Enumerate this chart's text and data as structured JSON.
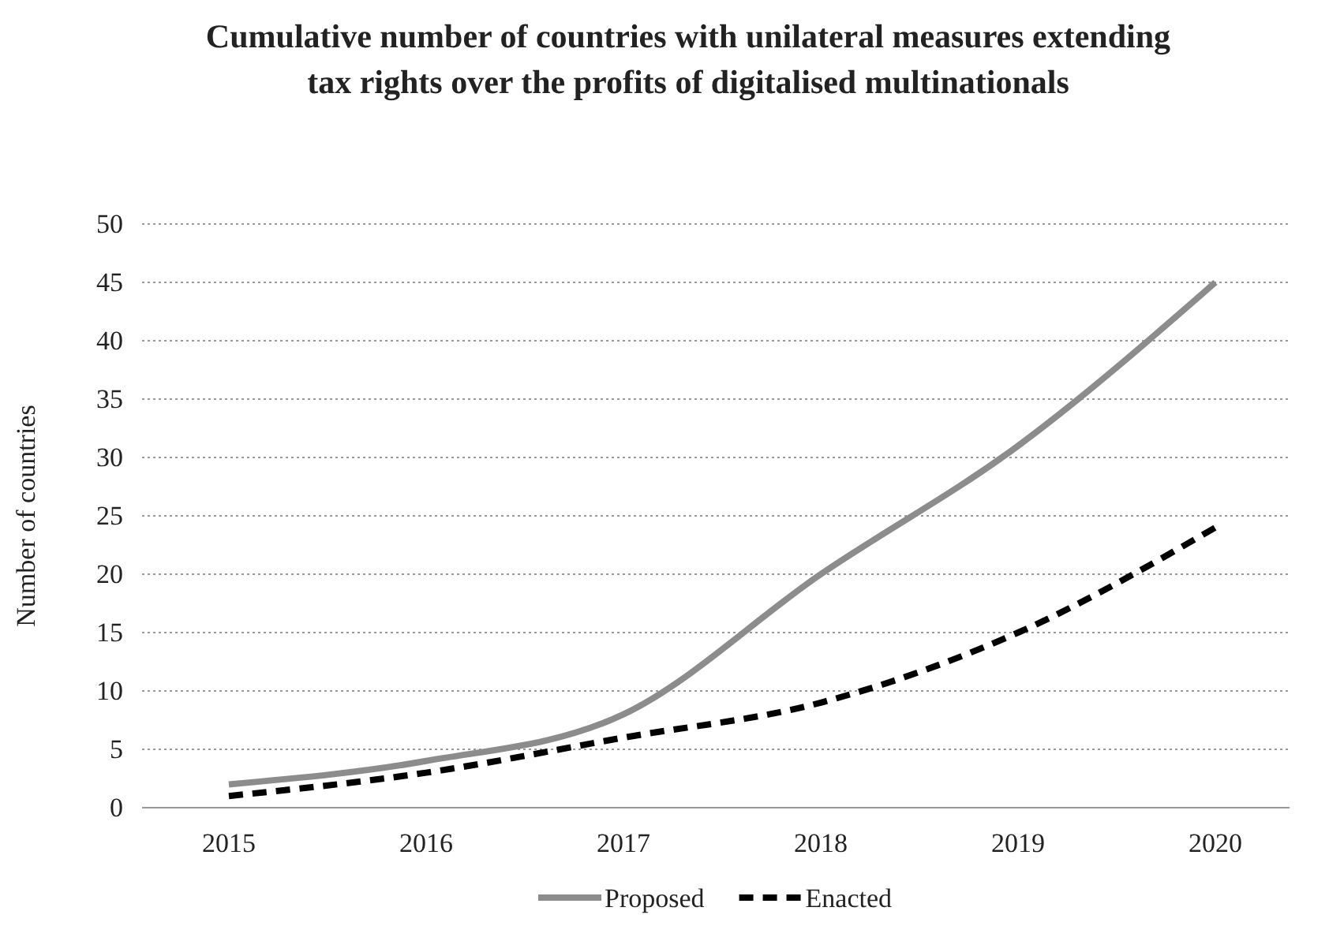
{
  "chart_data": {
    "type": "line",
    "title": "Cumulative number of countries with unilateral measures extending tax rights over the profits of digitalised multinationals",
    "ylabel": "Number of countries",
    "categories": [
      "2015",
      "2016",
      "2017",
      "2018",
      "2019",
      "2020"
    ],
    "series": [
      {
        "name": "Proposed",
        "color": "#8c8c8c",
        "line_style": "solid",
        "values": [
          2,
          4,
          8,
          20,
          31,
          45
        ]
      },
      {
        "name": "Enacted",
        "color": "#000000",
        "line_style": "dashed",
        "values": [
          1,
          3,
          6,
          9,
          15,
          24
        ]
      }
    ],
    "ylim": [
      0,
      50
    ],
    "yticks": [
      0,
      5,
      10,
      15,
      20,
      25,
      30,
      35,
      40,
      45,
      50
    ],
    "grid": "y",
    "legend": "bottom",
    "marker": "none"
  }
}
